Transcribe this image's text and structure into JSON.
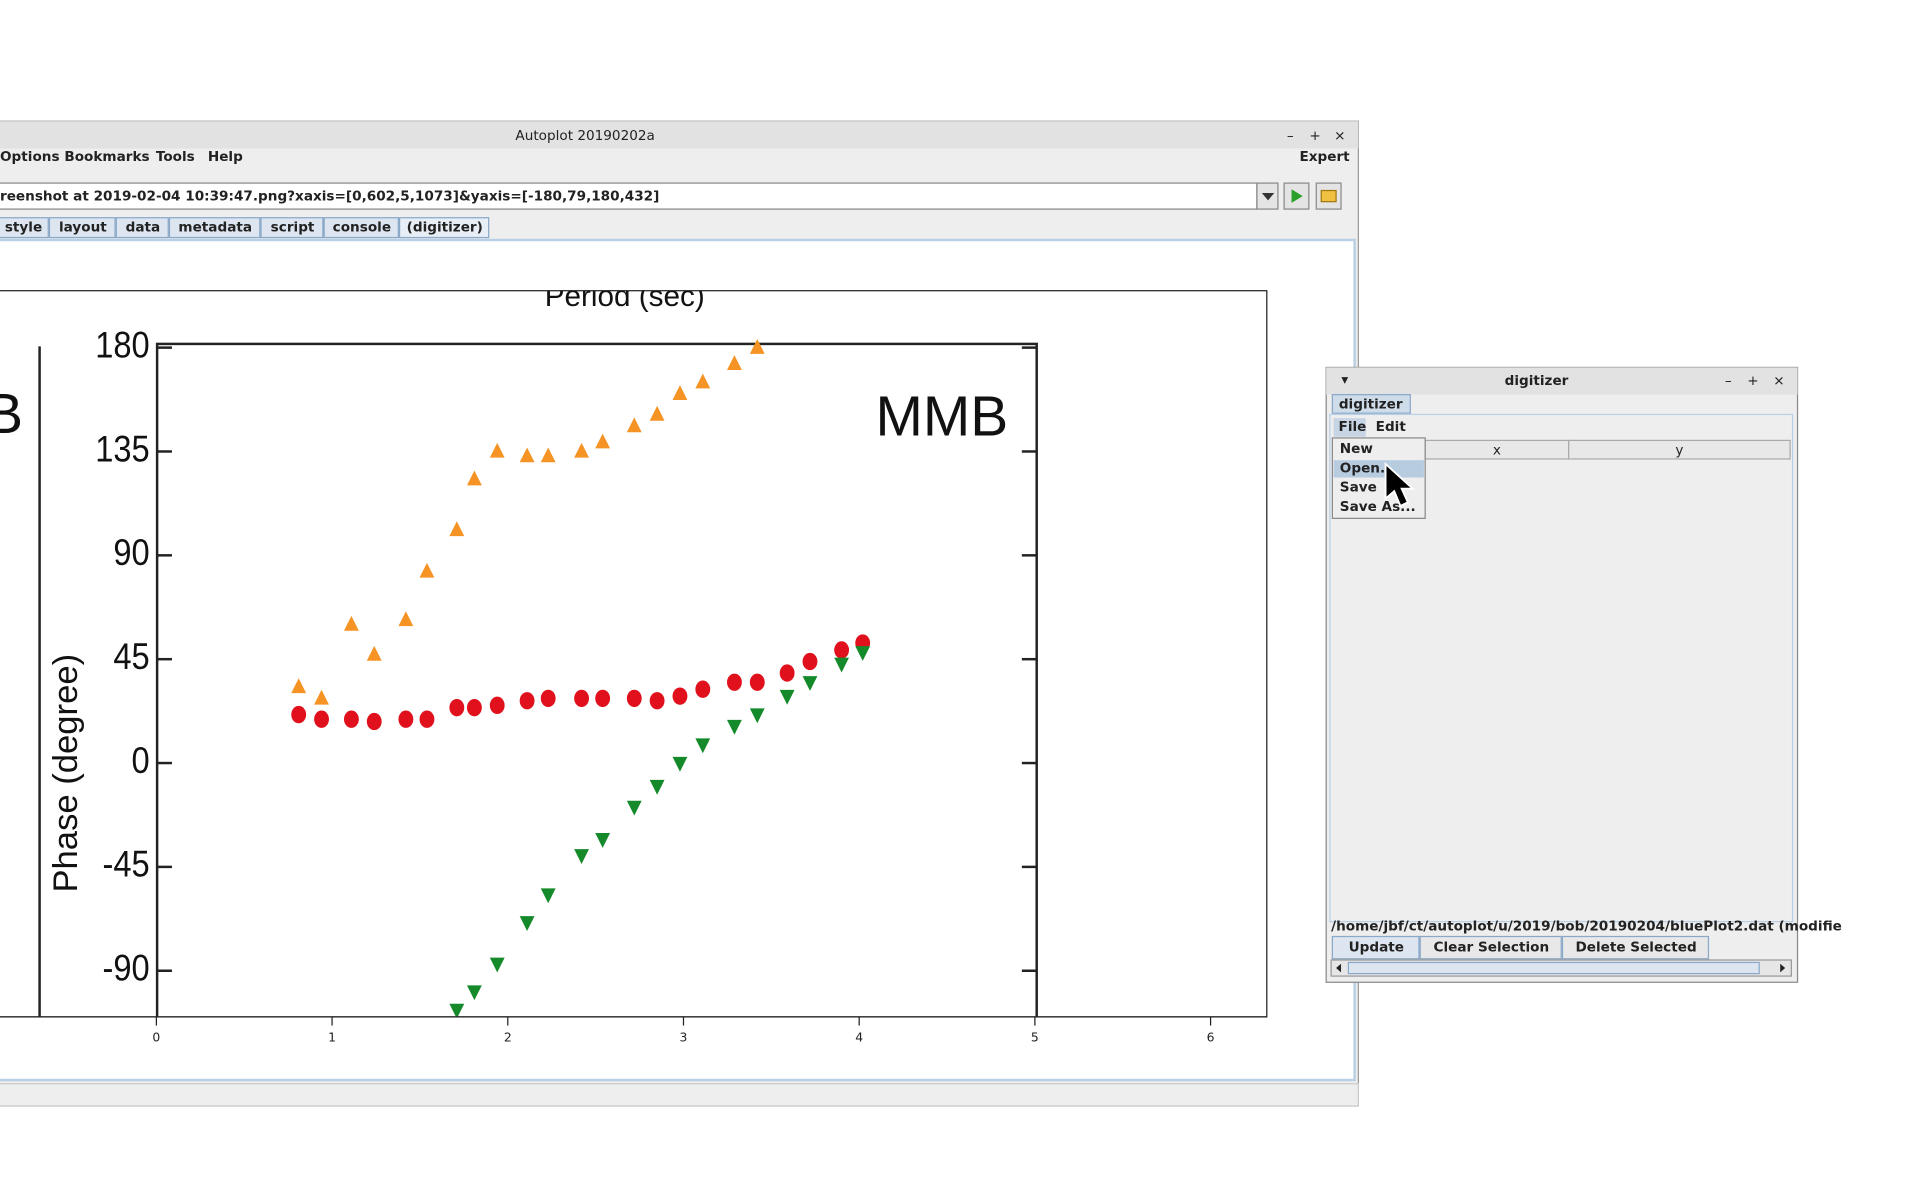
{
  "main_window": {
    "title": "Autoplot 20190202a",
    "menu": [
      "Options",
      "Bookmarks",
      "Tools",
      "Help"
    ],
    "expert": "Expert",
    "url": "reenshot at 2019-02-04 10:39:47.png?xaxis=[0,602,5,1073]&yaxis=[-180,79,180,432]",
    "tabs": [
      "style",
      "layout",
      "data",
      "metadata",
      "script",
      "console",
      "(digitizer)"
    ]
  },
  "plot": {
    "title": "Period (sec)",
    "panel_label_left": "B",
    "annotation": "MMB",
    "ylabel": "Phase (degree)",
    "ylim": [
      -110,
      180
    ],
    "yticks": [
      -90,
      -45,
      0,
      45,
      90,
      135,
      180
    ],
    "xlim": [
      -0.89,
      6.32
    ],
    "xticks": [
      0,
      1,
      2,
      3,
      4,
      5,
      6
    ],
    "series": [
      {
        "color": "#f59324",
        "marker": "triangle-up",
        "x": [
          0.81,
          0.94,
          1.11,
          1.24,
          1.42,
          1.54,
          1.71,
          1.81,
          1.94,
          2.11,
          2.23,
          2.42,
          2.54,
          2.72,
          2.85,
          2.98,
          3.11,
          3.29,
          3.42
        ],
        "y": [
          33,
          28,
          60,
          47,
          62,
          83,
          101,
          123,
          135,
          133,
          133,
          135,
          139,
          146,
          151,
          160,
          165,
          173,
          180
        ]
      },
      {
        "color": "#e0101c",
        "marker": "circle",
        "x": [
          0.81,
          0.94,
          1.11,
          1.24,
          1.42,
          1.54,
          1.71,
          1.81,
          1.94,
          2.11,
          2.23,
          2.42,
          2.54,
          2.72,
          2.85,
          2.98,
          3.11,
          3.29,
          3.42,
          3.59,
          3.72,
          3.9,
          4.02
        ],
        "y": [
          21,
          19,
          19,
          18,
          19,
          19,
          24,
          24,
          25,
          27,
          28,
          28,
          28,
          28,
          27,
          29,
          32,
          35,
          35,
          39,
          44,
          49,
          52
        ]
      },
      {
        "color": "#158a2a",
        "marker": "triangle-down",
        "x": [
          1.71,
          1.81,
          1.94,
          2.11,
          2.23,
          2.42,
          2.54,
          2.72,
          2.85,
          2.98,
          3.11,
          3.29,
          3.42,
          3.59,
          3.72,
          3.9,
          4.02
        ],
        "y": [
          -107,
          -99,
          -87,
          -69,
          -57,
          -40,
          -33,
          -19,
          -10,
          0,
          8,
          16,
          21,
          29,
          35,
          43,
          48
        ]
      }
    ]
  },
  "digitizer": {
    "title": "digitizer",
    "tab": "digitizer",
    "menu": [
      "File",
      "Edit"
    ],
    "file_menu": [
      "New",
      "Open...",
      "Save",
      "Save As..."
    ],
    "columns": [
      "x",
      "y"
    ],
    "path": "/home/jbf/ct/autoplot/u/2019/bob/20190204/bluePlot2.dat (modifie",
    "buttons": [
      "Update",
      "Clear Selection",
      "Delete Selected"
    ]
  }
}
